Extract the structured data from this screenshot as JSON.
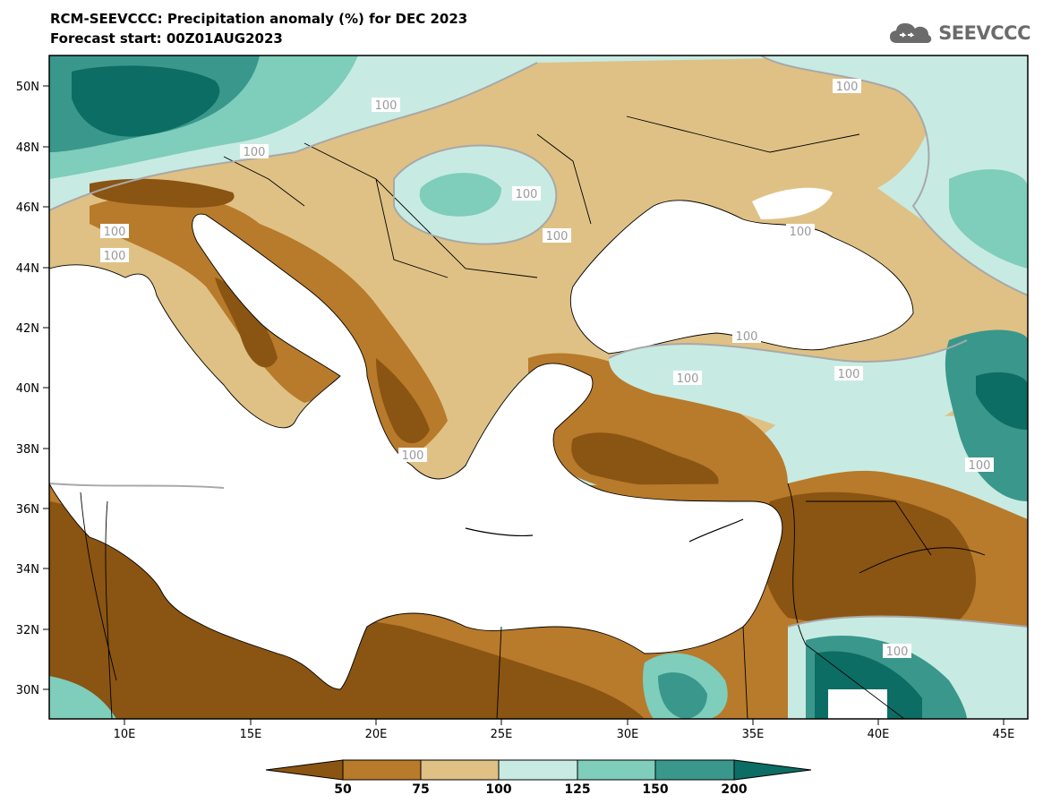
{
  "title": {
    "line1": "RCM-SEEVCCC: Precipitation anomaly (%) for DEC 2023",
    "line2": "Forecast start: 00Z01AUG2023"
  },
  "logo": {
    "text": "SEEVCCC",
    "icon": "cloud-logo-icon"
  },
  "map": {
    "lat_labels": [
      "50N",
      "48N",
      "46N",
      "44N",
      "42N",
      "40N",
      "38N",
      "36N",
      "34N",
      "32N",
      "30N"
    ],
    "lon_labels": [
      "10E",
      "15E",
      "20E",
      "25E",
      "30E",
      "35E",
      "40E",
      "45E"
    ],
    "contour_labels": [
      "100",
      "100",
      "100",
      "100",
      "100",
      "100",
      "100",
      "100",
      "100",
      "100",
      "100",
      "100",
      "100",
      "100"
    ]
  },
  "colorbar": {
    "labels": [
      "50",
      "75",
      "100",
      "125",
      "150",
      "200"
    ],
    "colors": {
      "lt50": "#8a5412",
      "50_75": "#b87a2b",
      "75_100": "#dfc185",
      "100_125": "#c7ebe3",
      "125_150": "#7fcdbb",
      "150_200": "#3a978b",
      "gt200": "#0b6d63"
    }
  }
}
